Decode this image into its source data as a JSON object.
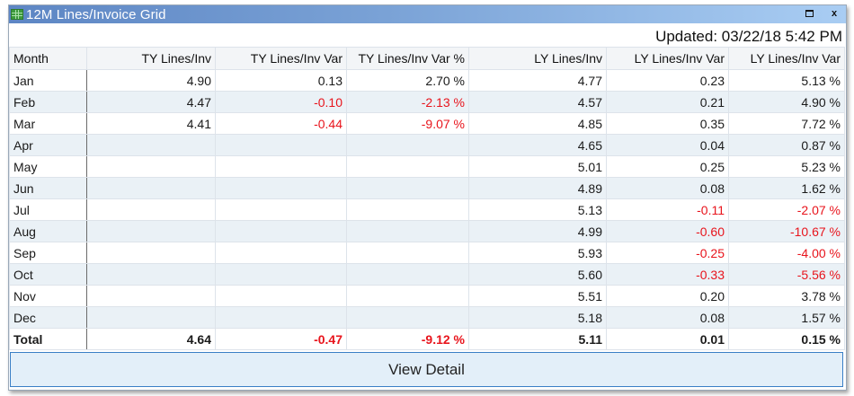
{
  "window": {
    "title": "12M Lines/Invoice Grid",
    "icon": "spreadsheet-grid-icon",
    "controls": {
      "maximize": "maximize-icon",
      "close_label": "x"
    }
  },
  "updated_text": "Updated: 03/22/18 5:42 PM",
  "grid": {
    "columns": [
      "Month",
      "TY Lines/Inv",
      "TY Lines/Inv Var",
      "TY Lines/Inv Var %",
      "LY Lines/Inv",
      "LY Lines/Inv Var",
      "LY Lines/Inv Var"
    ],
    "rows": [
      {
        "month": "Jan",
        "ty": "4.90",
        "ty_var": "0.13",
        "ty_var_pct": "2.70 %",
        "ly": "4.77",
        "ly_var": "0.23",
        "ly_var_pct": "5.13 %"
      },
      {
        "month": "Feb",
        "ty": "4.47",
        "ty_var": "-0.10",
        "ty_var_pct": "-2.13 %",
        "ly": "4.57",
        "ly_var": "0.21",
        "ly_var_pct": "4.90 %"
      },
      {
        "month": "Mar",
        "ty": "4.41",
        "ty_var": "-0.44",
        "ty_var_pct": "-9.07 %",
        "ly": "4.85",
        "ly_var": "0.35",
        "ly_var_pct": "7.72 %"
      },
      {
        "month": "Apr",
        "ty": "",
        "ty_var": "",
        "ty_var_pct": "",
        "ly": "4.65",
        "ly_var": "0.04",
        "ly_var_pct": "0.87 %"
      },
      {
        "month": "May",
        "ty": "",
        "ty_var": "",
        "ty_var_pct": "",
        "ly": "5.01",
        "ly_var": "0.25",
        "ly_var_pct": "5.23 %"
      },
      {
        "month": "Jun",
        "ty": "",
        "ty_var": "",
        "ty_var_pct": "",
        "ly": "4.89",
        "ly_var": "0.08",
        "ly_var_pct": "1.62 %"
      },
      {
        "month": "Jul",
        "ty": "",
        "ty_var": "",
        "ty_var_pct": "",
        "ly": "5.13",
        "ly_var": "-0.11",
        "ly_var_pct": "-2.07 %"
      },
      {
        "month": "Aug",
        "ty": "",
        "ty_var": "",
        "ty_var_pct": "",
        "ly": "4.99",
        "ly_var": "-0.60",
        "ly_var_pct": "-10.67 %"
      },
      {
        "month": "Sep",
        "ty": "",
        "ty_var": "",
        "ty_var_pct": "",
        "ly": "5.93",
        "ly_var": "-0.25",
        "ly_var_pct": "-4.00 %"
      },
      {
        "month": "Oct",
        "ty": "",
        "ty_var": "",
        "ty_var_pct": "",
        "ly": "5.60",
        "ly_var": "-0.33",
        "ly_var_pct": "-5.56 %"
      },
      {
        "month": "Nov",
        "ty": "",
        "ty_var": "",
        "ty_var_pct": "",
        "ly": "5.51",
        "ly_var": "0.20",
        "ly_var_pct": "3.78 %"
      },
      {
        "month": "Dec",
        "ty": "",
        "ty_var": "",
        "ty_var_pct": "",
        "ly": "5.18",
        "ly_var": "0.08",
        "ly_var_pct": "1.57 %"
      }
    ],
    "total": {
      "month": "Total",
      "ty": "4.64",
      "ty_var": "-0.47",
      "ty_var_pct": "-9.12 %",
      "ly": "5.11",
      "ly_var": "0.01",
      "ly_var_pct": "0.15 %"
    }
  },
  "colors": {
    "negative": "#e8141c",
    "alt_row": "#eaf1f6",
    "titlebar_start": "#5d86c4",
    "titlebar_end": "#a9cdf3",
    "button_bg": "#e3eff9",
    "button_border": "#3a7fc6"
  },
  "detail_button_label": "View Detail"
}
